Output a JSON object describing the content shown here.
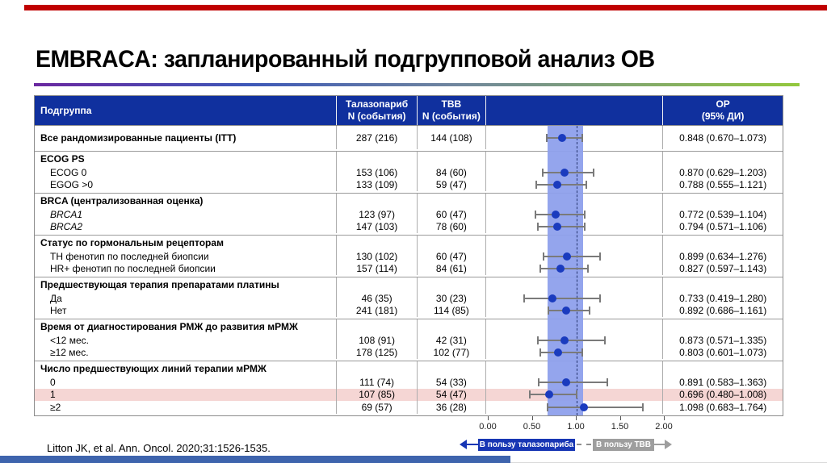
{
  "slide": {
    "title": "EMBRACA: запланированный подгрупповой анализ ОВ",
    "citation": "Litton JK, et al. Ann. Oncol. 2020;31:1526-1535.",
    "colors": {
      "topbar": "#C00000",
      "bottombar": "#3E64AD",
      "header": "#10309E",
      "band": "#8EA0EC",
      "dot": "#1A3BBE",
      "pink": "#F5D6D4",
      "ci": "#7a7a7a",
      "border": "#8c8c8c",
      "boxblue": "#1736B4",
      "boxgrey": "#9E9E9E"
    }
  },
  "table": {
    "headers": {
      "subgroup": "Подгруппа",
      "tala": "Талазопариб\nN (события)",
      "tbb": "ТВВ\nN (события)",
      "hr": "ОР\n(95% ДИ)"
    }
  },
  "chart_data": {
    "type": "scatter",
    "subtype": "forest-plot",
    "title": "EMBRACA: запланированный подгрупповой анализ ОВ",
    "xlabel": "ОР (95% ДИ)",
    "xlim": [
      0,
      2
    ],
    "x_ticks": [
      {
        "v": 0.0,
        "label": "0.00"
      },
      {
        "v": 0.5,
        "label": "0.50"
      },
      {
        "v": 1.0,
        "label": "1.00"
      },
      {
        "v": 1.5,
        "label": "1.50"
      },
      {
        "v": 2.0,
        "label": "2.00"
      }
    ],
    "reference_line": 1.0,
    "shaded_band": [
      0.67,
      1.073
    ],
    "favors_left": "В пользу талазопариба",
    "favors_right": "В пользу ТВВ",
    "groups": [
      {
        "header": null,
        "items": [
          {
            "label": "Все рандомизированные пациенты (ITT)",
            "itt": true,
            "talazoparib": "287 (216)",
            "tbb": "144 (108)",
            "hr": 0.848,
            "ci": [
              0.67,
              1.073
            ],
            "hr_text": "0.848 (0.670–1.073)"
          }
        ]
      },
      {
        "header": "ECOG PS",
        "items": [
          {
            "label": "ECOG 0",
            "talazoparib": "153 (106)",
            "tbb": "84 (60)",
            "hr": 0.87,
            "ci": [
              0.629,
              1.203
            ],
            "hr_text": "0.870 (0.629–1.203)"
          },
          {
            "label": "EGOG >0",
            "talazoparib": "133 (109)",
            "tbb": "59 (47)",
            "hr": 0.788,
            "ci": [
              0.555,
              1.121
            ],
            "hr_text": "0.788 (0.555–1.121)"
          }
        ]
      },
      {
        "header": "BRCA (централизованная оценка)",
        "items": [
          {
            "label": "BRCA1",
            "italic": true,
            "talazoparib": "123 (97)",
            "tbb": "60 (47)",
            "hr": 0.772,
            "ci": [
              0.539,
              1.104
            ],
            "hr_text": "0.772 (0.539–1.104)"
          },
          {
            "label": "BRCA2",
            "italic": true,
            "talazoparib": "147 (103)",
            "tbb": "78 (60)",
            "hr": 0.794,
            "ci": [
              0.571,
              1.106
            ],
            "hr_text": "0.794 (0.571–1.106)"
          }
        ]
      },
      {
        "header": "Статус по гормональным рецепторам",
        "items": [
          {
            "label": "ТН фенотип по последней биопсии",
            "talazoparib": "130 (102)",
            "tbb": "60 (47)",
            "hr": 0.899,
            "ci": [
              0.634,
              1.276
            ],
            "hr_text": "0.899 (0.634–1.276)"
          },
          {
            "label": "HR+ фенотип по последней биопсии",
            "talazoparib": "157 (114)",
            "tbb": "84 (61)",
            "hr": 0.827,
            "ci": [
              0.597,
              1.143
            ],
            "hr_text": "0.827 (0.597–1.143)"
          }
        ]
      },
      {
        "header": "Предшествующая терапия препаратами платины",
        "items": [
          {
            "label": "Да",
            "talazoparib": "46 (35)",
            "tbb": "30 (23)",
            "hr": 0.733,
            "ci": [
              0.419,
              1.28
            ],
            "hr_text": "0.733 (0.419–1.280)"
          },
          {
            "label": "Нет",
            "talazoparib": "241 (181)",
            "tbb": "114 (85)",
            "hr": 0.892,
            "ci": [
              0.686,
              1.161
            ],
            "hr_text": "0.892 (0.686–1.161)"
          }
        ]
      },
      {
        "header": "Время от диагностирования РМЖ до развития мРМЖ",
        "items": [
          {
            "label": "<12 мес.",
            "talazoparib": "108 (91)",
            "tbb": "42 (31)",
            "hr": 0.873,
            "ci": [
              0.571,
              1.335
            ],
            "hr_text": "0.873 (0.571–1.335)"
          },
          {
            "label": "≥12 мес.",
            "talazoparib": "178 (125)",
            "tbb": "102 (77)",
            "hr": 0.803,
            "ci": [
              0.601,
              1.073
            ],
            "hr_text": "0.803 (0.601–1.073)"
          }
        ]
      },
      {
        "header": "Число предшествующих линий терапии мРМЖ",
        "items": [
          {
            "label": "0",
            "talazoparib": "111 (74)",
            "tbb": "54 (33)",
            "hr": 0.891,
            "ci": [
              0.583,
              1.363
            ],
            "hr_text": "0.891 (0.583–1.363)"
          },
          {
            "label": "1",
            "highlight": true,
            "talazoparib": "107 (85)",
            "tbb": "54 (47)",
            "hr": 0.696,
            "ci": [
              0.48,
              1.008
            ],
            "hr_text": "0.696 (0.480–1.008)"
          },
          {
            "label": "≥2",
            "talazoparib": "69 (57)",
            "tbb": "36 (28)",
            "hr": 1.098,
            "ci": [
              0.683,
              1.764
            ],
            "hr_text": "1.098 (0.683–1.764)"
          }
        ]
      }
    ]
  }
}
